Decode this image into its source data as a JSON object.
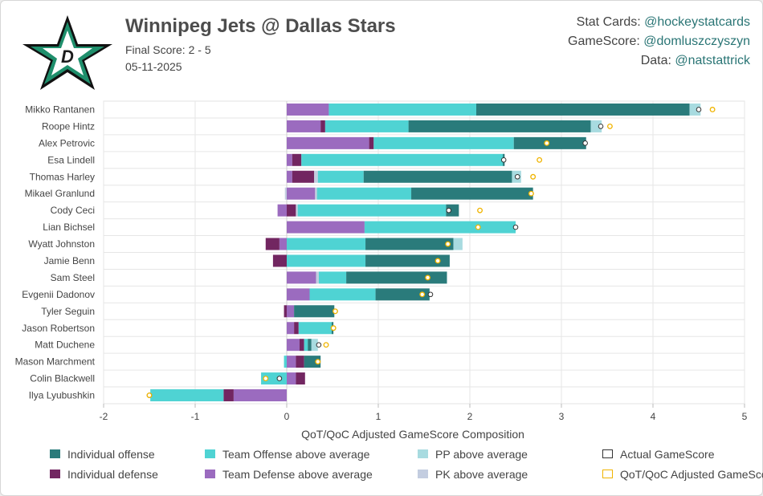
{
  "header": {
    "title": "Winnipeg Jets @ Dallas Stars",
    "final_score": "Final Score: 2 - 5",
    "date": "05-11-2025",
    "logo_icon": "dallas-stars-logo-icon",
    "credits": [
      {
        "label": "Stat Cards: ",
        "handle": "@hockeystatcards"
      },
      {
        "label": "GameScore: ",
        "handle": "@domluszczyszyn"
      },
      {
        "label": "Data: ",
        "handle": "@natstattrick"
      }
    ]
  },
  "colors": {
    "individual_offense": "#2a7b7b",
    "individual_defense": "#722661",
    "team_offense": "#4fd3d3",
    "team_defense": "#9b6bbf",
    "pp": "#a8dbe0",
    "pk": "#c3cde0",
    "actual_marker": "#333333",
    "adjusted_marker": "#f0b400"
  },
  "chart_data": {
    "type": "bar",
    "orientation": "horizontal",
    "stacked": true,
    "xlabel": "QoT/QoC Adjusted GameScore Composition",
    "xlim": [
      -2,
      5
    ],
    "xticks": [
      "-2",
      "-1",
      "0",
      "1",
      "2",
      "3",
      "4",
      "5"
    ],
    "grid": true,
    "legend_position": "bottom",
    "legend": [
      {
        "key": "individual_offense",
        "label": "Individual offense",
        "kind": "fill"
      },
      {
        "key": "team_offense",
        "label": "Team Offense above average",
        "kind": "fill"
      },
      {
        "key": "pp",
        "label": "PP above average",
        "kind": "fill"
      },
      {
        "key": "actual_marker",
        "label": "Actual GameScore",
        "kind": "outline"
      },
      {
        "key": "individual_defense",
        "label": "Individual defense",
        "kind": "fill"
      },
      {
        "key": "team_defense",
        "label": "Team Defense above average",
        "kind": "fill"
      },
      {
        "key": "pk",
        "label": "PK above average",
        "kind": "fill"
      },
      {
        "key": "adjusted_marker",
        "label": "QoT/QoC Adjusted GameScore",
        "kind": "outline"
      }
    ],
    "players": [
      {
        "name": "Mikko Rantanen",
        "segments": [
          {
            "c": "team_defense",
            "v": 0.46
          },
          {
            "c": "team_offense",
            "v": 1.61
          },
          {
            "c": "individual_offense",
            "v": 2.33
          },
          {
            "c": "pp",
            "v": 0.12
          }
        ],
        "actual": 4.5,
        "adjusted": 4.65
      },
      {
        "name": "Roope Hintz",
        "segments": [
          {
            "c": "team_defense",
            "v": 0.37
          },
          {
            "c": "individual_defense",
            "v": 0.05
          },
          {
            "c": "team_offense",
            "v": 0.91
          },
          {
            "c": "individual_offense",
            "v": 1.99
          },
          {
            "c": "pp",
            "v": 0.12
          }
        ],
        "actual": 3.43,
        "adjusted": 3.53
      },
      {
        "name": "Alex Petrovic",
        "segments": [
          {
            "c": "team_defense",
            "v": 0.9
          },
          {
            "c": "individual_defense",
            "v": 0.05
          },
          {
            "c": "team_offense",
            "v": 1.53
          },
          {
            "c": "individual_offense",
            "v": 0.79
          }
        ],
        "actual": 3.26,
        "adjusted": 2.84
      },
      {
        "name": "Esa Lindell",
        "segments": [
          {
            "c": "team_defense",
            "v": 0.06
          },
          {
            "c": "individual_defense",
            "v": 0.1
          },
          {
            "c": "team_offense",
            "v": 2.2
          },
          {
            "c": "individual_offense",
            "v": 0.02
          }
        ],
        "actual": 2.37,
        "adjusted": 2.76
      },
      {
        "name": "Thomas Harley",
        "segments": [
          {
            "c": "team_defense",
            "v": 0.06
          },
          {
            "c": "individual_defense",
            "v": 0.24
          },
          {
            "c": "pk",
            "v": 0.04
          },
          {
            "c": "team_offense",
            "v": 0.5
          },
          {
            "c": "individual_offense",
            "v": 1.62
          },
          {
            "c": "pp",
            "v": 0.1
          }
        ],
        "actual": 2.52,
        "adjusted": 2.69
      },
      {
        "name": "Mikael Granlund",
        "segments": [
          {
            "c": "pk",
            "v": -0.02
          },
          {
            "c": "team_defense",
            "v": 0.31
          },
          {
            "c": "pk",
            "v": 0.02
          },
          {
            "c": "team_offense",
            "v": 1.03
          },
          {
            "c": "individual_offense",
            "v": 1.33
          }
        ],
        "actual": 2.67,
        "adjusted": 2.67
      },
      {
        "name": "Cody Ceci",
        "segments": [
          {
            "c": "team_defense",
            "v": -0.1
          },
          {
            "c": "individual_defense",
            "v": 0.1
          },
          {
            "c": "pk",
            "v": 0.02
          },
          {
            "c": "team_offense",
            "v": 1.62
          },
          {
            "c": "individual_offense",
            "v": 0.14
          }
        ],
        "actual": 1.77,
        "adjusted": 2.11
      },
      {
        "name": "Lian Bichsel",
        "segments": [
          {
            "c": "team_defense",
            "v": 0.85
          },
          {
            "c": "team_offense",
            "v": 1.65
          }
        ],
        "actual": 2.5,
        "adjusted": 2.09
      },
      {
        "name": "Wyatt Johnston",
        "segments": [
          {
            "c": "team_defense",
            "v": -0.08
          },
          {
            "c": "individual_defense",
            "v": -0.15
          },
          {
            "c": "team_offense",
            "v": 0.86
          },
          {
            "c": "individual_offense",
            "v": 0.96
          },
          {
            "c": "pp",
            "v": 0.1
          }
        ],
        "actual": 1.76,
        "adjusted": 1.76
      },
      {
        "name": "Jamie Benn",
        "segments": [
          {
            "c": "individual_defense",
            "v": -0.15
          },
          {
            "c": "team_offense",
            "v": 0.86
          },
          {
            "c": "individual_offense",
            "v": 0.92
          }
        ],
        "actual": 1.65,
        "adjusted": 1.65
      },
      {
        "name": "Sam Steel",
        "segments": [
          {
            "c": "team_defense",
            "v": 0.32
          },
          {
            "c": "pk",
            "v": 0.03
          },
          {
            "c": "team_offense",
            "v": 0.3
          },
          {
            "c": "individual_offense",
            "v": 1.1
          }
        ],
        "actual": 1.54,
        "adjusted": 1.54
      },
      {
        "name": "Evgenii Dadonov",
        "segments": [
          {
            "c": "team_defense",
            "v": 0.25
          },
          {
            "c": "team_offense",
            "v": 0.72
          },
          {
            "c": "individual_offense",
            "v": 0.59
          }
        ],
        "actual": 1.57,
        "adjusted": 1.48
      },
      {
        "name": "Tyler Seguin",
        "segments": [
          {
            "c": "individual_defense",
            "v": -0.03
          },
          {
            "c": "team_defense",
            "v": 0.08
          },
          {
            "c": "individual_offense",
            "v": 0.44
          }
        ],
        "actual": 0.53,
        "adjusted": 0.53
      },
      {
        "name": "Jason Robertson",
        "segments": [
          {
            "c": "team_defense",
            "v": 0.08
          },
          {
            "c": "individual_defense",
            "v": 0.05
          },
          {
            "c": "team_offense",
            "v": 0.36
          },
          {
            "c": "individual_offense",
            "v": 0.02
          }
        ],
        "actual": 0.51,
        "adjusted": 0.51
      },
      {
        "name": "Matt Duchene",
        "segments": [
          {
            "c": "team_defense",
            "v": 0.14
          },
          {
            "c": "individual_defense",
            "v": 0.05
          },
          {
            "c": "team_offense",
            "v": 0.04
          },
          {
            "c": "individual_offense",
            "v": 0.04
          },
          {
            "c": "pp",
            "v": 0.07
          }
        ],
        "actual": 0.35,
        "adjusted": 0.43
      },
      {
        "name": "Mason Marchment",
        "segments": [
          {
            "c": "team_offense",
            "v": -0.03
          },
          {
            "c": "team_defense",
            "v": 0.1
          },
          {
            "c": "individual_defense",
            "v": 0.09
          },
          {
            "c": "individual_offense",
            "v": 0.18
          }
        ],
        "actual": 0.34,
        "adjusted": 0.34
      },
      {
        "name": "Colin Blackwell",
        "segments": [
          {
            "c": "team_offense",
            "v": -0.28
          },
          {
            "c": "team_defense",
            "v": 0.1
          },
          {
            "c": "individual_defense",
            "v": 0.1
          }
        ],
        "actual": -0.08,
        "adjusted": -0.23
      },
      {
        "name": "Ilya Lyubushkin",
        "segments": [
          {
            "c": "team_defense",
            "v": -0.58
          },
          {
            "c": "individual_defense",
            "v": -0.11
          },
          {
            "c": "team_offense",
            "v": -0.8
          }
        ],
        "actual": -1.5,
        "adjusted": -1.5
      }
    ]
  }
}
